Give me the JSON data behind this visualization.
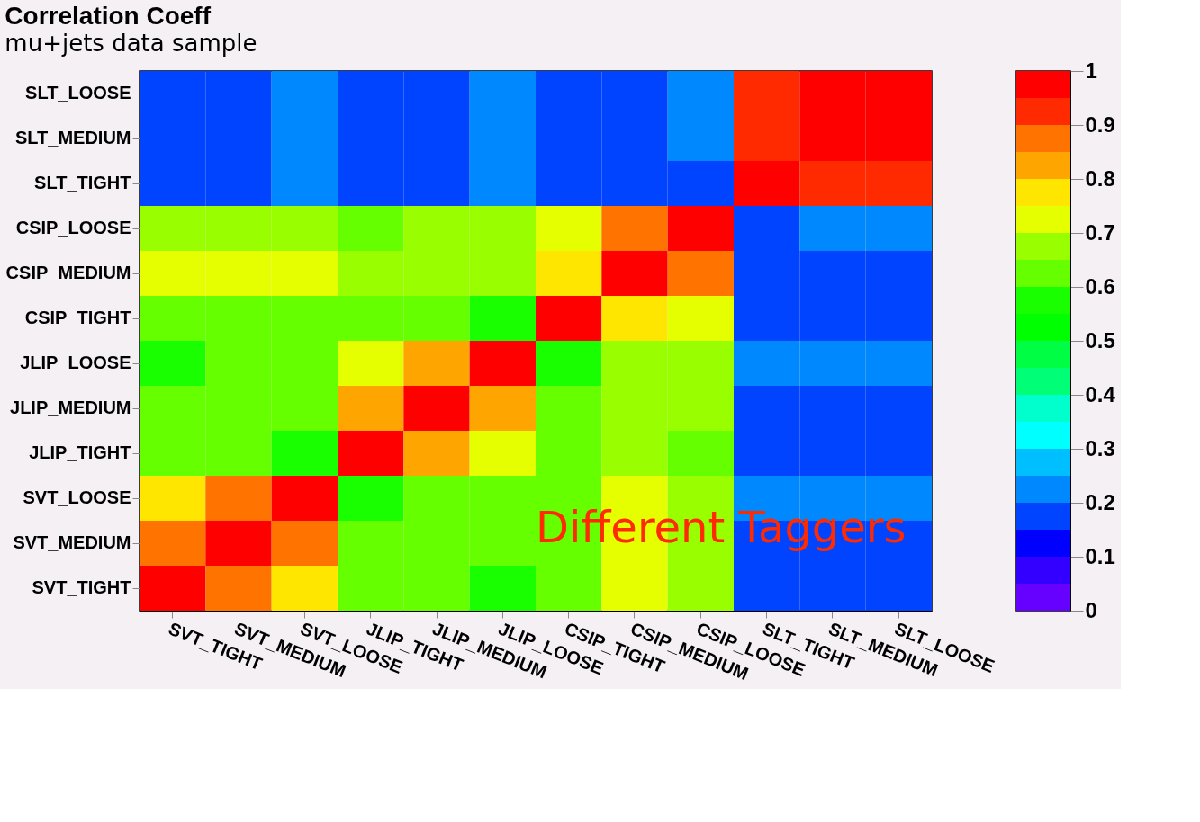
{
  "chart_data": {
    "type": "heatmap",
    "title": "Correlation Coeff",
    "subtitle": "mu+jets data sample",
    "categories": [
      "SVT_TIGHT",
      "SVT_MEDIUM",
      "SVT_LOOSE",
      "JLIP_TIGHT",
      "JLIP_MEDIUM",
      "JLIP_LOOSE",
      "CSIP_TIGHT",
      "CSIP_MEDIUM",
      "CSIP_LOOSE",
      "SLT_TIGHT",
      "SLT_MEDIUM",
      "SLT_LOOSE"
    ],
    "y_categories": [
      "SLT_LOOSE",
      "SLT_MEDIUM",
      "SLT_TIGHT",
      "CSIP_LOOSE",
      "CSIP_MEDIUM",
      "CSIP_TIGHT",
      "JLIP_LOOSE",
      "JLIP_MEDIUM",
      "JLIP_TIGHT",
      "SVT_LOOSE",
      "SVT_MEDIUM",
      "SVT_TIGHT"
    ],
    "cells": [
      [
        0.17,
        0.17,
        0.22,
        0.17,
        0.17,
        0.22,
        0.17,
        0.17,
        0.22,
        0.92,
        0.97,
        0.97
      ],
      [
        0.17,
        0.17,
        0.22,
        0.17,
        0.17,
        0.22,
        0.17,
        0.17,
        0.22,
        0.92,
        0.97,
        0.97
      ],
      [
        0.17,
        0.17,
        0.22,
        0.17,
        0.17,
        0.22,
        0.17,
        0.17,
        0.17,
        0.97,
        0.92,
        0.92
      ],
      [
        0.67,
        0.67,
        0.67,
        0.62,
        0.67,
        0.67,
        0.72,
        0.87,
        0.97,
        0.17,
        0.22,
        0.22
      ],
      [
        0.72,
        0.72,
        0.72,
        0.67,
        0.67,
        0.67,
        0.77,
        0.97,
        0.87,
        0.17,
        0.17,
        0.17
      ],
      [
        0.62,
        0.62,
        0.62,
        0.62,
        0.62,
        0.57,
        0.97,
        0.77,
        0.72,
        0.17,
        0.17,
        0.17
      ],
      [
        0.57,
        0.62,
        0.62,
        0.72,
        0.82,
        0.97,
        0.57,
        0.67,
        0.67,
        0.22,
        0.22,
        0.22
      ],
      [
        0.62,
        0.62,
        0.62,
        0.82,
        0.97,
        0.82,
        0.62,
        0.67,
        0.67,
        0.17,
        0.17,
        0.17
      ],
      [
        0.62,
        0.62,
        0.57,
        0.97,
        0.82,
        0.72,
        0.62,
        0.67,
        0.62,
        0.17,
        0.17,
        0.17
      ],
      [
        0.77,
        0.87,
        0.97,
        0.57,
        0.62,
        0.62,
        0.62,
        0.72,
        0.67,
        0.22,
        0.22,
        0.22
      ],
      [
        0.87,
        0.97,
        0.87,
        0.62,
        0.62,
        0.62,
        0.62,
        0.72,
        0.67,
        0.17,
        0.17,
        0.17
      ],
      [
        0.97,
        0.87,
        0.77,
        0.62,
        0.62,
        0.57,
        0.62,
        0.72,
        0.67,
        0.17,
        0.17,
        0.17
      ]
    ],
    "clim": [
      0,
      1
    ],
    "cticks": [
      0,
      0.1,
      0.2,
      0.3,
      0.4,
      0.5,
      0.6,
      0.7,
      0.8,
      0.9,
      1
    ],
    "annotations": [
      "Different Taggers"
    ]
  }
}
